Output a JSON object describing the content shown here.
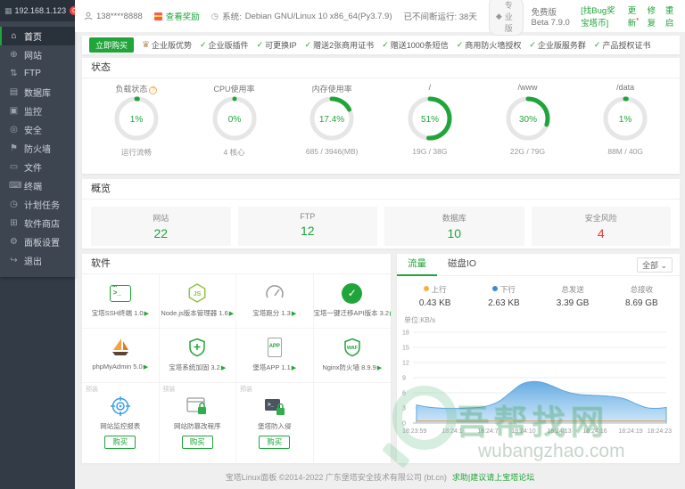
{
  "sidebar": {
    "ip": "192.168.1.123",
    "badge": "0",
    "items": [
      {
        "label": "首页",
        "icon": "⌂"
      },
      {
        "label": "网站",
        "icon": "⊕"
      },
      {
        "label": "FTP",
        "icon": "⇅"
      },
      {
        "label": "数据库",
        "icon": "▤"
      },
      {
        "label": "监控",
        "icon": "▣"
      },
      {
        "label": "安全",
        "icon": "◎"
      },
      {
        "label": "防火墙",
        "icon": "⚑"
      },
      {
        "label": "文件",
        "icon": "▭"
      },
      {
        "label": "终端",
        "icon": "⌨"
      },
      {
        "label": "计划任务",
        "icon": "◷"
      },
      {
        "label": "软件商店",
        "icon": "⊞"
      },
      {
        "label": "面板设置",
        "icon": "⚙"
      },
      {
        "label": "退出",
        "icon": "↪"
      }
    ]
  },
  "topbar": {
    "phone": "138****8888",
    "reward_link": "查看奖励",
    "system_label": "系统:",
    "system_value": "Debian GNU/Linux 10 x86_64(Py3.7.9)",
    "uptime": "已不间断运行: 38天",
    "pro_badge": "专业版",
    "diamond": "◆",
    "version_text": "免费版 Beta 7.9.0",
    "bug_bounty": "[找Bug奖宝塔币]",
    "update_link": "更新",
    "repair_link": "修复",
    "restart_link": "重启"
  },
  "promo": {
    "buy_button": "立即购买",
    "title": "企业版优势",
    "features": [
      "企业版插件",
      "可更换IP",
      "赠送2张商用证书",
      "赠送1000条短信",
      "商用防火墙授权",
      "企业版服务群",
      "产品授权证书"
    ]
  },
  "status": {
    "title": "状态",
    "gauges": [
      {
        "label": "负载状态",
        "percent": 1,
        "value": "1%",
        "sub": "运行流畅"
      },
      {
        "label": "CPU使用率",
        "percent": 0,
        "value": "0%",
        "sub": "4 核心"
      },
      {
        "label": "内存使用率",
        "percent": 17.4,
        "value": "17.4%",
        "sub": "685 / 3946(MB)"
      },
      {
        "label": "/",
        "percent": 51,
        "value": "51%",
        "sub": "19G / 38G"
      },
      {
        "label": "/www",
        "percent": 30,
        "value": "30%",
        "sub": "22G / 79G"
      },
      {
        "label": "/data",
        "percent": 1,
        "value": "1%",
        "sub": "88M / 40G"
      }
    ]
  },
  "overview": {
    "title": "概览",
    "cards": [
      {
        "label": "网站",
        "value": "22",
        "color": "green"
      },
      {
        "label": "FTP",
        "value": "12",
        "color": "green"
      },
      {
        "label": "数据库",
        "value": "10",
        "color": "green"
      },
      {
        "label": "安全风险",
        "value": "4",
        "color": "red"
      }
    ]
  },
  "software": {
    "title": "软件",
    "preinstall_tag": "预装",
    "buy_label": "购买",
    "apps": [
      {
        "label": "宝塔SSH终端 1.0",
        "icon": "ssh-terminal"
      },
      {
        "label": "Node.js版本管理器 1.6",
        "icon": "nodejs"
      },
      {
        "label": "宝塔跑分 1.3",
        "icon": "speedometer"
      },
      {
        "label": "宝塔一键迁移API版本 3.2",
        "icon": "migrate-check"
      },
      {
        "label": "phpMyAdmin 5.0",
        "icon": "sailboat"
      },
      {
        "label": "宝塔系统加固 3.2",
        "icon": "shield-plus"
      },
      {
        "label": "堡塔APP 1.1",
        "icon": "phone-app"
      },
      {
        "label": "Nginx防火墙 8.9.9",
        "icon": "waf-shield"
      },
      {
        "label": "网站监控报表",
        "icon": "monitor-target"
      },
      {
        "label": "网站防篡改程序",
        "icon": "window-lock"
      },
      {
        "label": "堡塔防入侵",
        "icon": "terminal-lock"
      }
    ]
  },
  "traffic": {
    "tab_traffic": "流量",
    "tab_diskio": "磁盘IO",
    "filter": "全部 ⌄",
    "stats": [
      {
        "label": "上行",
        "value": "0.43 KB",
        "dot": "#f5b041"
      },
      {
        "label": "下行",
        "value": "2.63 KB",
        "dot": "#418bca"
      },
      {
        "label": "总发送",
        "value": "3.39 GB",
        "dot": ""
      },
      {
        "label": "总接收",
        "value": "8.69 GB",
        "dot": ""
      }
    ],
    "unit_label": "单位:KB/s"
  },
  "chart_data": {
    "type": "area",
    "title": "流量",
    "ylabel": "单位:KB/s",
    "ylim": [
      0,
      18
    ],
    "yticks": [
      0,
      3,
      6,
      9,
      12,
      15,
      18
    ],
    "grid": true,
    "legend_position": "none",
    "x_labels": [
      "18:23:59",
      "18:24:1",
      "18:24:7",
      "18:24:10",
      "18:24:13",
      "18:24:16",
      "18:24:19",
      "18:24:23"
    ],
    "series": [
      {
        "name": "下行",
        "type": "area",
        "color": "#5fa5dd",
        "values": [
          3.6,
          3.2,
          3.0,
          2.9,
          2.9,
          3.0,
          3.1,
          3.5,
          4.4,
          6.0,
          7.6,
          8.2,
          8.1,
          7.4,
          6.5,
          5.9,
          5.6,
          5.5,
          5.4,
          5.2,
          4.8,
          3.9,
          3.1,
          2.9,
          3.1
        ]
      },
      {
        "name": "上行",
        "type": "line",
        "color": "#dfa96f",
        "values": [
          0.4,
          0.4,
          0.4,
          0.4,
          0.4,
          0.4,
          0.4,
          0.4,
          0.4,
          0.4,
          0.4,
          0.4,
          0.4,
          0.4,
          0.4,
          0.4,
          0.4,
          0.4,
          0.4,
          0.4,
          0.4,
          0.4,
          0.4,
          0.4,
          0.4
        ]
      }
    ]
  },
  "footer": {
    "copyright": "宝塔Linux面板 ©2014-2022 广东堡塔安全技术有限公司 (bt.cn)",
    "link": "求助|建议请上宝塔论坛"
  },
  "watermark": {
    "text": "吾帮找网",
    "domain": "wubangzhao.com"
  },
  "colors": {
    "accent": "#20a53a",
    "danger": "#e23c39",
    "area_blue": "#5fa5dd",
    "line_orange": "#dfa96f"
  }
}
